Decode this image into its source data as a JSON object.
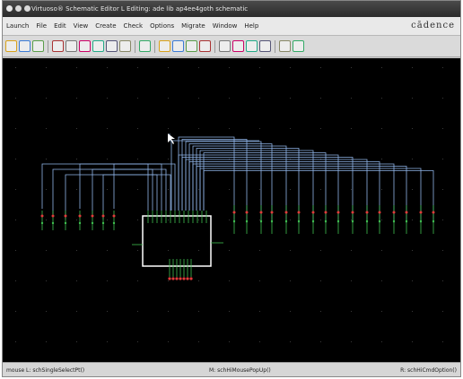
{
  "window": {
    "title": "Virtuoso® Schematic Editor L Editing: ade lib ap4ee4goth schematic"
  },
  "menubar": {
    "items": [
      "Launch",
      "File",
      "Edit",
      "View",
      "Create",
      "Check",
      "Options",
      "Migrate",
      "Window",
      "Help"
    ],
    "brand": "cādence"
  },
  "toolbar": {
    "icons": [
      "new-icon",
      "save-icon",
      "save-as-icon",
      "sep",
      "move-icon",
      "copy-icon",
      "stretch-icon",
      "delete-icon",
      "undo-icon",
      "redo-icon",
      "sep",
      "property-icon",
      "sep",
      "zoom-fit-icon",
      "zoom-in-icon",
      "zoom-out-icon",
      "zoom-area-icon",
      "sep",
      "instance-icon",
      "wire-icon",
      "pin-icon",
      "label-icon",
      "sep",
      "check-save-icon",
      "help-icon"
    ]
  },
  "statusbar": {
    "left": "mouse L: schSingleSelectPt()",
    "center": "M: schHiMousePopUp()",
    "right": "R: schHiCmdOption()"
  },
  "colors": {
    "wire": "#8fb4e8",
    "pin": "#3fbf4f",
    "pinLabel": "#e23a3a",
    "instance": "#ffffff",
    "grid": "#2a2a2a"
  }
}
